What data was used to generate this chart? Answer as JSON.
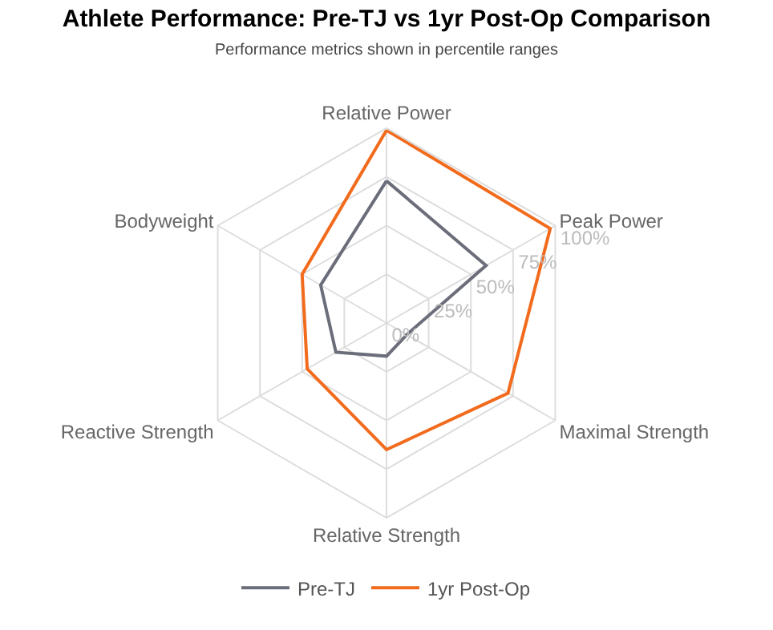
{
  "chart_data": {
    "type": "radar",
    "title": "Athlete Performance: Pre-TJ vs 1yr Post-Op Comparison",
    "subtitle": "Performance metrics shown in percentile ranges",
    "categories": [
      "Relative Power",
      "Peak Power",
      "Maximal Strength",
      "Relative Strength",
      "Reactive Strength",
      "Bodyweight"
    ],
    "series": [
      {
        "name": "Pre-TJ",
        "color": "#6b6e7a",
        "values": [
          73,
          59,
          12,
          17,
          30,
          39
        ]
      },
      {
        "name": "1yr Post-Op",
        "color": "#f26b1d",
        "values": [
          99,
          97,
          72,
          65,
          47,
          50
        ]
      }
    ],
    "ylim": [
      0,
      100
    ],
    "yticks": [
      {
        "value": 0,
        "label": "0%"
      },
      {
        "value": 25,
        "label": "25%"
      },
      {
        "value": 50,
        "label": "50%"
      },
      {
        "value": 75,
        "label": "75%"
      },
      {
        "value": 100,
        "label": "100%"
      }
    ],
    "grid": true,
    "legend": "bottom",
    "marker": "none",
    "line_style": "solid"
  }
}
